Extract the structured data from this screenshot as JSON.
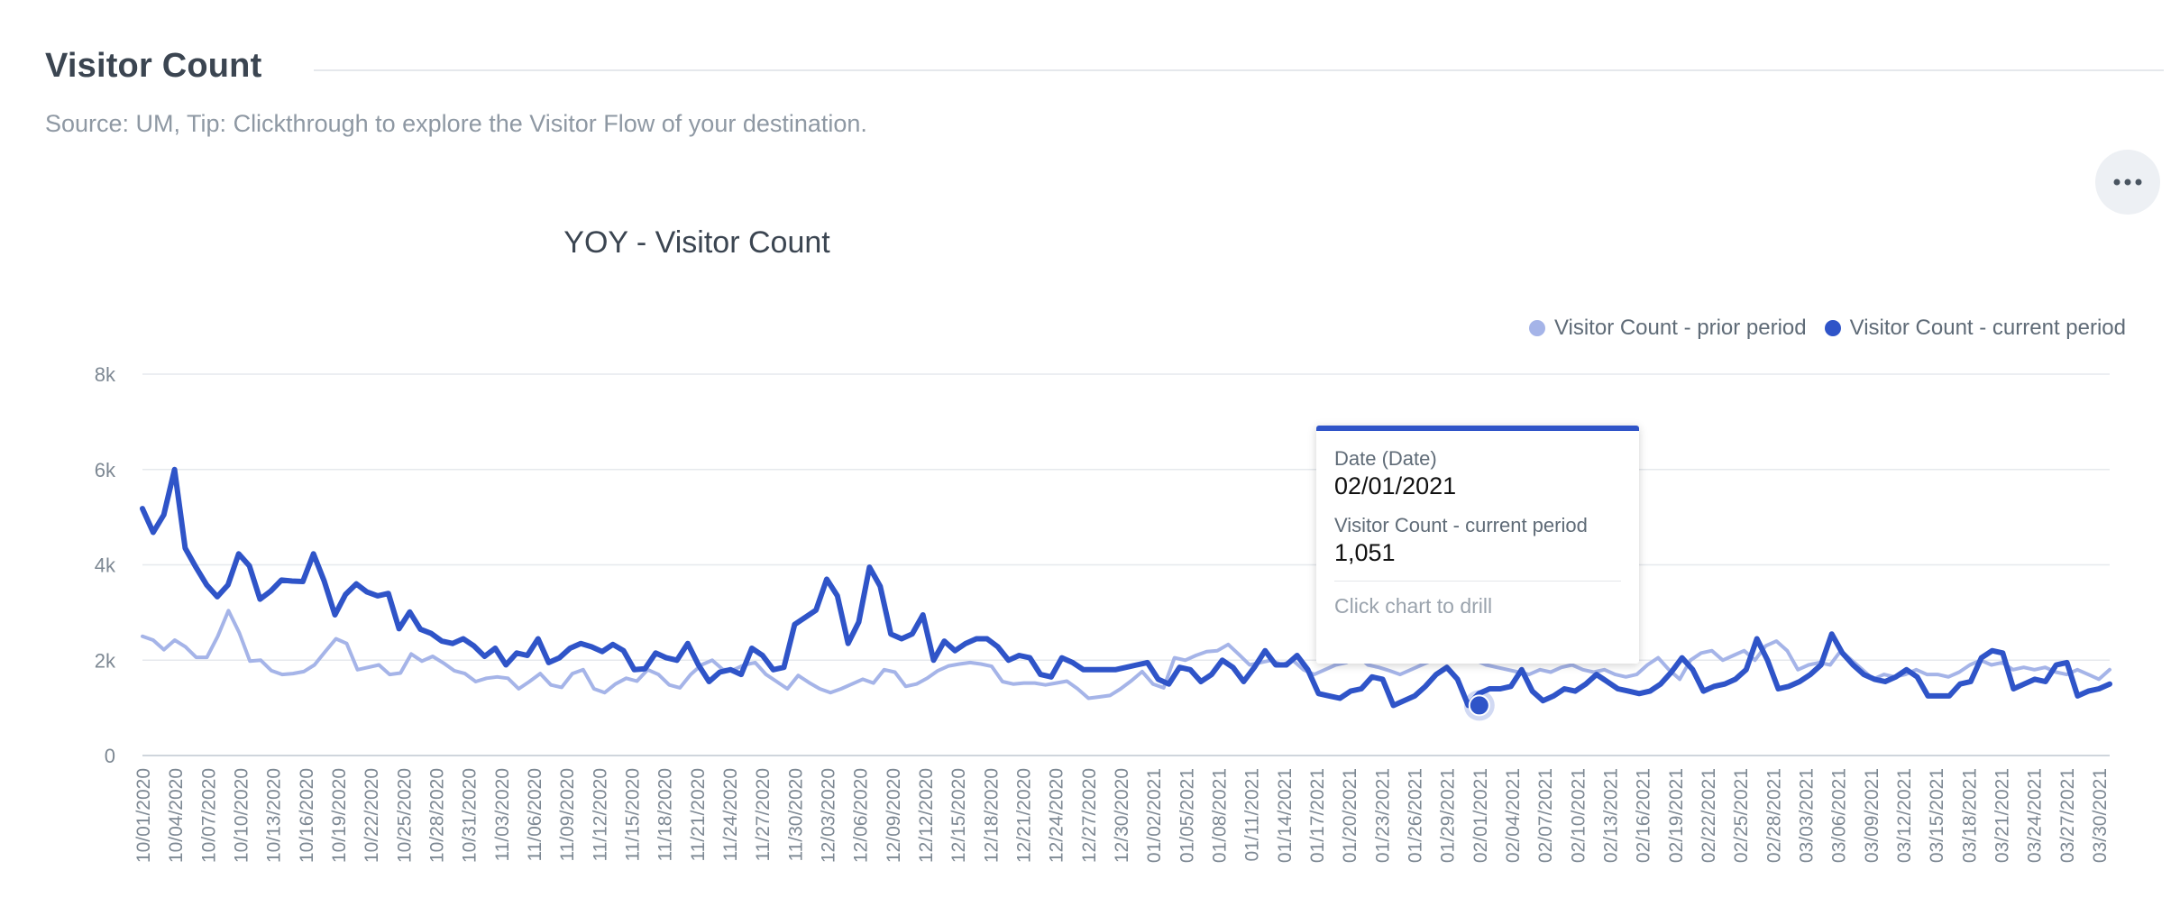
{
  "header": {
    "title": "Visitor Count",
    "subtitle": "Source: UM, Tip: Clickthrough to explore the Visitor Flow of your destination."
  },
  "toolbar": {
    "more_icon": "more-horizontal-icon"
  },
  "colors": {
    "prior": "#a5b4e8",
    "current": "#2f54c8",
    "grid": "#e6e9ed",
    "axis_text": "#7d8893"
  },
  "tooltip": {
    "date_label": "Date (Date)",
    "date_value": "02/01/2021",
    "metric_label": "Visitor Count - current period",
    "metric_value": "1,051",
    "hint": "Click chart to drill"
  },
  "chart_data": {
    "type": "line",
    "title": "YOY - Visitor Count",
    "xlabel": "",
    "ylabel": "",
    "ylim": [
      0,
      8000
    ],
    "y_ticks": [
      "0",
      "2k",
      "4k",
      "6k",
      "8k"
    ],
    "y_tick_values": [
      0,
      2000,
      4000,
      6000,
      8000
    ],
    "grid": true,
    "legend_position": "top-right",
    "x_start": "10/01/2020",
    "x_end": "03/31/2021",
    "x_tick_labels": [
      "10/01/2020",
      "10/04/2020",
      "10/07/2020",
      "10/10/2020",
      "10/13/2020",
      "10/16/2020",
      "10/19/2020",
      "10/22/2020",
      "10/25/2020",
      "10/28/2020",
      "10/31/2020",
      "11/03/2020",
      "11/06/2020",
      "11/09/2020",
      "11/12/2020",
      "11/15/2020",
      "11/18/2020",
      "11/21/2020",
      "11/24/2020",
      "11/27/2020",
      "11/30/2020",
      "12/03/2020",
      "12/06/2020",
      "12/09/2020",
      "12/12/2020",
      "12/15/2020",
      "12/18/2020",
      "12/21/2020",
      "12/24/2020",
      "12/27/2020",
      "12/30/2020",
      "01/02/2021",
      "01/05/2021",
      "01/08/2021",
      "01/11/2021",
      "01/14/2021",
      "01/17/2021",
      "01/20/2021",
      "01/23/2021",
      "01/26/2021",
      "01/29/2021",
      "02/01/2021",
      "02/04/2021",
      "02/07/2021",
      "02/10/2021",
      "02/13/2021",
      "02/16/2021",
      "02/19/2021",
      "02/22/2021",
      "02/25/2021",
      "02/28/2021",
      "03/03/2021",
      "03/06/2021",
      "03/09/2021",
      "03/12/2021",
      "03/15/2021",
      "03/18/2021",
      "03/21/2021",
      "03/24/2021",
      "03/27/2021",
      "03/30/2021"
    ],
    "highlight": {
      "date": "02/01/2021",
      "series": "Visitor Count - current period",
      "value": 1051
    },
    "series": [
      {
        "name": "Visitor Count - prior period",
        "values": [
          2500,
          2420,
          2220,
          2420,
          2280,
          2060,
          2060,
          2500,
          3040,
          2580,
          1980,
          2000,
          1780,
          1700,
          1720,
          1760,
          1900,
          2180,
          2450,
          2350,
          1800,
          1850,
          1900,
          1700,
          1730,
          2130,
          1980,
          2080,
          1940,
          1780,
          1720,
          1550,
          1620,
          1650,
          1620,
          1400,
          1550,
          1720,
          1480,
          1430,
          1720,
          1800,
          1400,
          1320,
          1500,
          1620,
          1560,
          1800,
          1700,
          1480,
          1420,
          1700,
          1900,
          2000,
          1800,
          1800,
          1900,
          1950,
          1700,
          1550,
          1400,
          1680,
          1530,
          1400,
          1320,
          1400,
          1500,
          1600,
          1520,
          1800,
          1750,
          1450,
          1500,
          1620,
          1780,
          1880,
          1920,
          1950,
          1920,
          1870,
          1550,
          1500,
          1520,
          1520,
          1480,
          1520,
          1560,
          1400,
          1200,
          1230,
          1260,
          1400,
          1570,
          1760,
          1500,
          1420,
          2050,
          2000,
          2100,
          2180,
          2200,
          2330,
          2120,
          1900,
          1950,
          2000,
          1900,
          2000,
          1800,
          1700,
          1800,
          1900,
          1950,
          2100,
          1900,
          1850,
          1780,
          1700,
          1800,
          1900,
          2000,
          2000,
          2050,
          2100,
          2000,
          1900,
          1850,
          1800,
          1750,
          1700,
          1800,
          1750,
          1850,
          1900,
          1800,
          1750,
          1800,
          1700,
          1650,
          1700,
          1900,
          2050,
          1800,
          1600,
          2000,
          2150,
          2200,
          2000,
          2100,
          2200,
          2000,
          2300,
          2400,
          2200,
          1800,
          1900,
          1950,
          1900,
          2200,
          2000,
          1800,
          1600,
          1700,
          1650,
          1700,
          1800,
          1700,
          1700,
          1650,
          1750,
          1900,
          2000,
          1900,
          1950,
          1800,
          1850,
          1800,
          1850,
          1750,
          1700,
          1800,
          1700,
          1600,
          1800
        ]
      },
      {
        "name": "Visitor Count - current period",
        "values": [
          5180,
          4680,
          5050,
          6000,
          4350,
          3950,
          3580,
          3330,
          3580,
          4230,
          3980,
          3280,
          3450,
          3680,
          3660,
          3650,
          4230,
          3660,
          2950,
          3380,
          3600,
          3430,
          3350,
          3400,
          2660,
          3010,
          2650,
          2560,
          2400,
          2350,
          2450,
          2300,
          2080,
          2250,
          1900,
          2150,
          2100,
          2450,
          1950,
          2050,
          2250,
          2350,
          2280,
          2180,
          2330,
          2200,
          1800,
          1820,
          2150,
          2050,
          2000,
          2350,
          1900,
          1550,
          1750,
          1800,
          1700,
          2250,
          2100,
          1800,
          1850,
          2750,
          2900,
          3050,
          3700,
          3350,
          2350,
          2800,
          3950,
          3550,
          2550,
          2450,
          2550,
          2950,
          2000,
          2400,
          2200,
          2350,
          2450,
          2450,
          2280,
          2000,
          2100,
          2050,
          1700,
          1650,
          2050,
          1950,
          1800,
          1800,
          1800,
          1800,
          1850,
          1900,
          1950,
          1600,
          1500,
          1850,
          1800,
          1550,
          1700,
          2000,
          1850,
          1550,
          1850,
          2200,
          1900,
          1900,
          2100,
          1800,
          1300,
          1250,
          1200,
          1350,
          1400,
          1650,
          1600,
          1050,
          1150,
          1250,
          1450,
          1700,
          1850,
          1600,
          1051,
          1300,
          1400,
          1400,
          1450,
          1800,
          1350,
          1150,
          1250,
          1400,
          1350,
          1500,
          1700,
          1550,
          1400,
          1350,
          1300,
          1350,
          1500,
          1750,
          2050,
          1800,
          1350,
          1450,
          1500,
          1600,
          1800,
          2450,
          2000,
          1400,
          1450,
          1550,
          1700,
          1900,
          2550,
          2150,
          1900,
          1700,
          1600,
          1550,
          1650,
          1800,
          1650,
          1250,
          1250,
          1250,
          1500,
          1550,
          2050,
          2200,
          2150,
          1400,
          1500,
          1600,
          1550,
          1900,
          1950,
          1250,
          1350,
          1400,
          1500
        ]
      }
    ]
  }
}
